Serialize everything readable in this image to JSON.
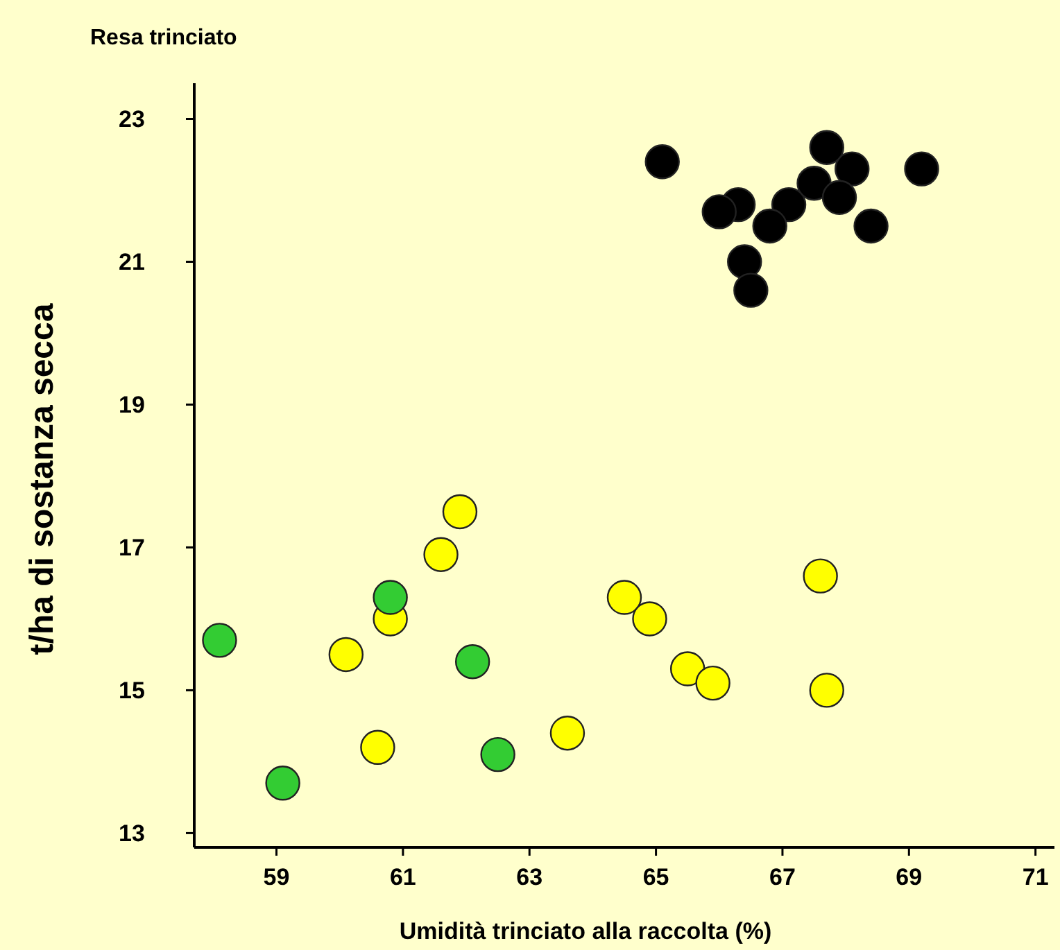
{
  "chart_data": {
    "type": "scatter",
    "title": "Resa trinciato",
    "xlabel": "Umidità trinciato alla raccolta (%)",
    "ylabel": "t/ha di sostanza secca",
    "xlim": [
      57.7,
      71.3
    ],
    "xticks": [
      59,
      61,
      63,
      65,
      67,
      69,
      71
    ],
    "ylim": [
      12.8,
      23.5
    ],
    "yticks": [
      13,
      15,
      17,
      19,
      21,
      23
    ],
    "marker": "circle",
    "series": [
      {
        "color": "#000000",
        "x": [
          65.1,
          66.3,
          66.0,
          67.7,
          67.5,
          68.1,
          67.9,
          69.2,
          68.4,
          67.1,
          66.8,
          66.4,
          66.5
        ],
        "values": [
          22.4,
          21.8,
          21.7,
          22.6,
          22.1,
          22.3,
          21.9,
          22.3,
          21.5,
          21.8,
          21.5,
          21.0,
          20.6
        ]
      },
      {
        "color": "#ffff00",
        "x": [
          61.9,
          61.6,
          60.8,
          60.1,
          60.6,
          63.6,
          64.5,
          64.9,
          67.6,
          67.7,
          65.5,
          65.9
        ],
        "values": [
          17.5,
          16.9,
          16.0,
          15.5,
          14.2,
          14.4,
          16.3,
          16.0,
          16.6,
          15.0,
          15.3,
          15.1
        ]
      },
      {
        "color": "#33cc33",
        "x": [
          58.1,
          60.8,
          62.1,
          62.5,
          59.1
        ],
        "values": [
          15.7,
          16.3,
          15.4,
          14.1,
          13.7
        ]
      }
    ]
  }
}
